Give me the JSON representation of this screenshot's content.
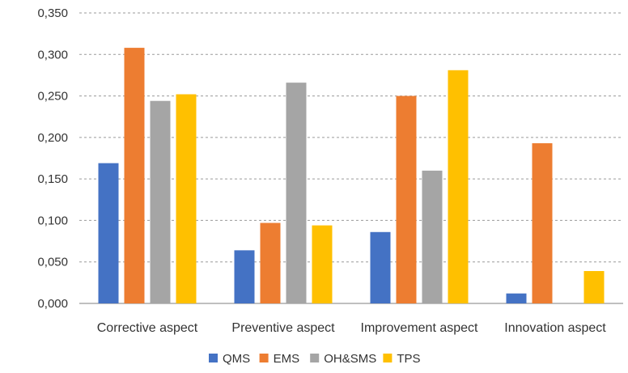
{
  "chart_data": {
    "type": "bar",
    "title": "",
    "xlabel": "",
    "ylabel": "",
    "categories": [
      "Corrective aspect",
      "Preventive aspect",
      "Improvement aspect",
      "Innovation aspect"
    ],
    "series": [
      {
        "name": "QMS",
        "color": "#4472C4",
        "values": [
          0.169,
          0.064,
          0.086,
          0.012
        ]
      },
      {
        "name": "EMS",
        "color": "#ED7D31",
        "values": [
          0.308,
          0.097,
          0.25,
          0.193
        ]
      },
      {
        "name": "OH&SMS",
        "color": "#A5A5A5",
        "values": [
          0.244,
          0.266,
          0.16,
          0.0
        ]
      },
      {
        "name": "TPS",
        "color": "#FFC000",
        "values": [
          0.252,
          0.094,
          0.281,
          0.039
        ]
      }
    ],
    "ylim": [
      0,
      0.35
    ],
    "yticks": [
      0,
      0.05,
      0.1,
      0.15,
      0.2,
      0.25,
      0.3,
      0.35
    ],
    "ytick_labels": [
      "0,000",
      "0,050",
      "0,100",
      "0,150",
      "0,200",
      "0,250",
      "0,300",
      "0,350"
    ],
    "grid": true,
    "legend_position": "bottom"
  }
}
